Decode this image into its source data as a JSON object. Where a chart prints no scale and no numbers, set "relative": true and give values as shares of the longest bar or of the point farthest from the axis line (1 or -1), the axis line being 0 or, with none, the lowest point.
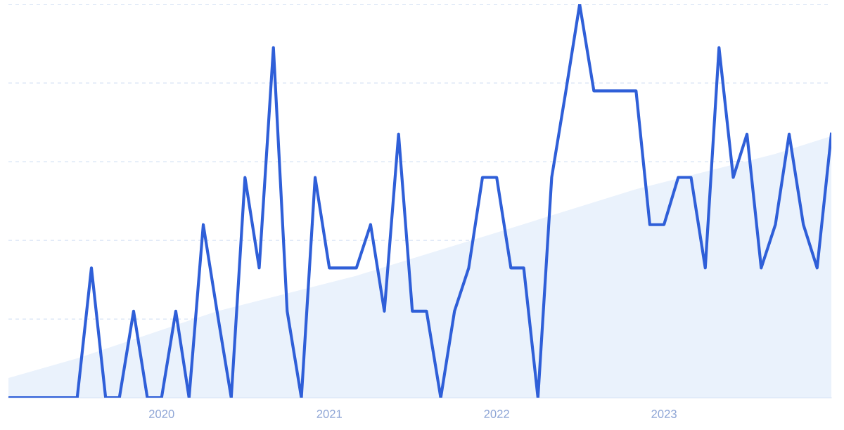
{
  "chart_data": {
    "type": "line",
    "relative": true,
    "x": [
      "2019-02",
      "2019-03",
      "2019-04",
      "2019-05",
      "2019-06",
      "2019-07",
      "2019-08",
      "2019-09",
      "2019-10",
      "2019-11",
      "2019-12",
      "2020-01",
      "2020-02",
      "2020-03",
      "2020-04",
      "2020-05",
      "2020-06",
      "2020-07",
      "2020-08",
      "2020-09",
      "2020-10",
      "2020-11",
      "2020-12",
      "2021-01",
      "2021-02",
      "2021-03",
      "2021-04",
      "2021-05",
      "2021-06",
      "2021-07",
      "2021-08",
      "2021-09",
      "2021-10",
      "2021-11",
      "2021-12",
      "2022-01",
      "2022-02",
      "2022-03",
      "2022-04",
      "2022-05",
      "2022-06",
      "2022-07",
      "2022-08",
      "2022-09",
      "2022-10",
      "2022-11",
      "2022-12",
      "2023-01",
      "2023-02",
      "2023-03",
      "2023-04",
      "2023-05",
      "2023-06",
      "2023-07",
      "2023-08",
      "2023-09",
      "2023-10",
      "2023-11",
      "2023-12",
      "2024-01"
    ],
    "series": [
      {
        "type": "area",
        "color": "#eaf2fc",
        "x": [
          "2019-02",
          "2019-07",
          "2020-05",
          "2021-03",
          "2022-01",
          "2022-11",
          "2023-09",
          "2024-01"
        ],
        "values": [
          0.05,
          0.1,
          0.22,
          0.31,
          0.42,
          0.53,
          0.62,
          0.665
        ]
      },
      {
        "color": "#2f5fd8",
        "values": [
          0,
          0,
          0,
          0,
          0,
          0,
          0.33,
          0,
          0,
          0.22,
          0,
          0,
          0.22,
          0,
          0.44,
          0.22,
          0,
          0.56,
          0.33,
          0.89,
          0.22,
          0,
          0.56,
          0.33,
          0.33,
          0.33,
          0.44,
          0.22,
          0.67,
          0.22,
          0.22,
          0,
          0.22,
          0.33,
          0.56,
          0.56,
          0.33,
          0.33,
          0,
          0.56,
          0.78,
          1,
          0.78,
          0.78,
          0.78,
          0.78,
          0.44,
          0.44,
          0.56,
          0.56,
          0.33,
          0.89,
          0.56,
          0.67,
          0.33,
          0.44,
          0.67,
          0.44,
          0.33,
          0.67
        ]
      }
    ],
    "xlim": [
      "2019-02",
      "2024-01"
    ],
    "xticks": [
      {
        "value": "2020-01",
        "label": "2020"
      },
      {
        "value": "2021-01",
        "label": "2021"
      },
      {
        "value": "2022-01",
        "label": "2022"
      },
      {
        "value": "2023-01",
        "label": "2023"
      }
    ],
    "grid": "y",
    "tick_labels": "x",
    "marker": "none",
    "line_style": "solid",
    "legend": false
  }
}
